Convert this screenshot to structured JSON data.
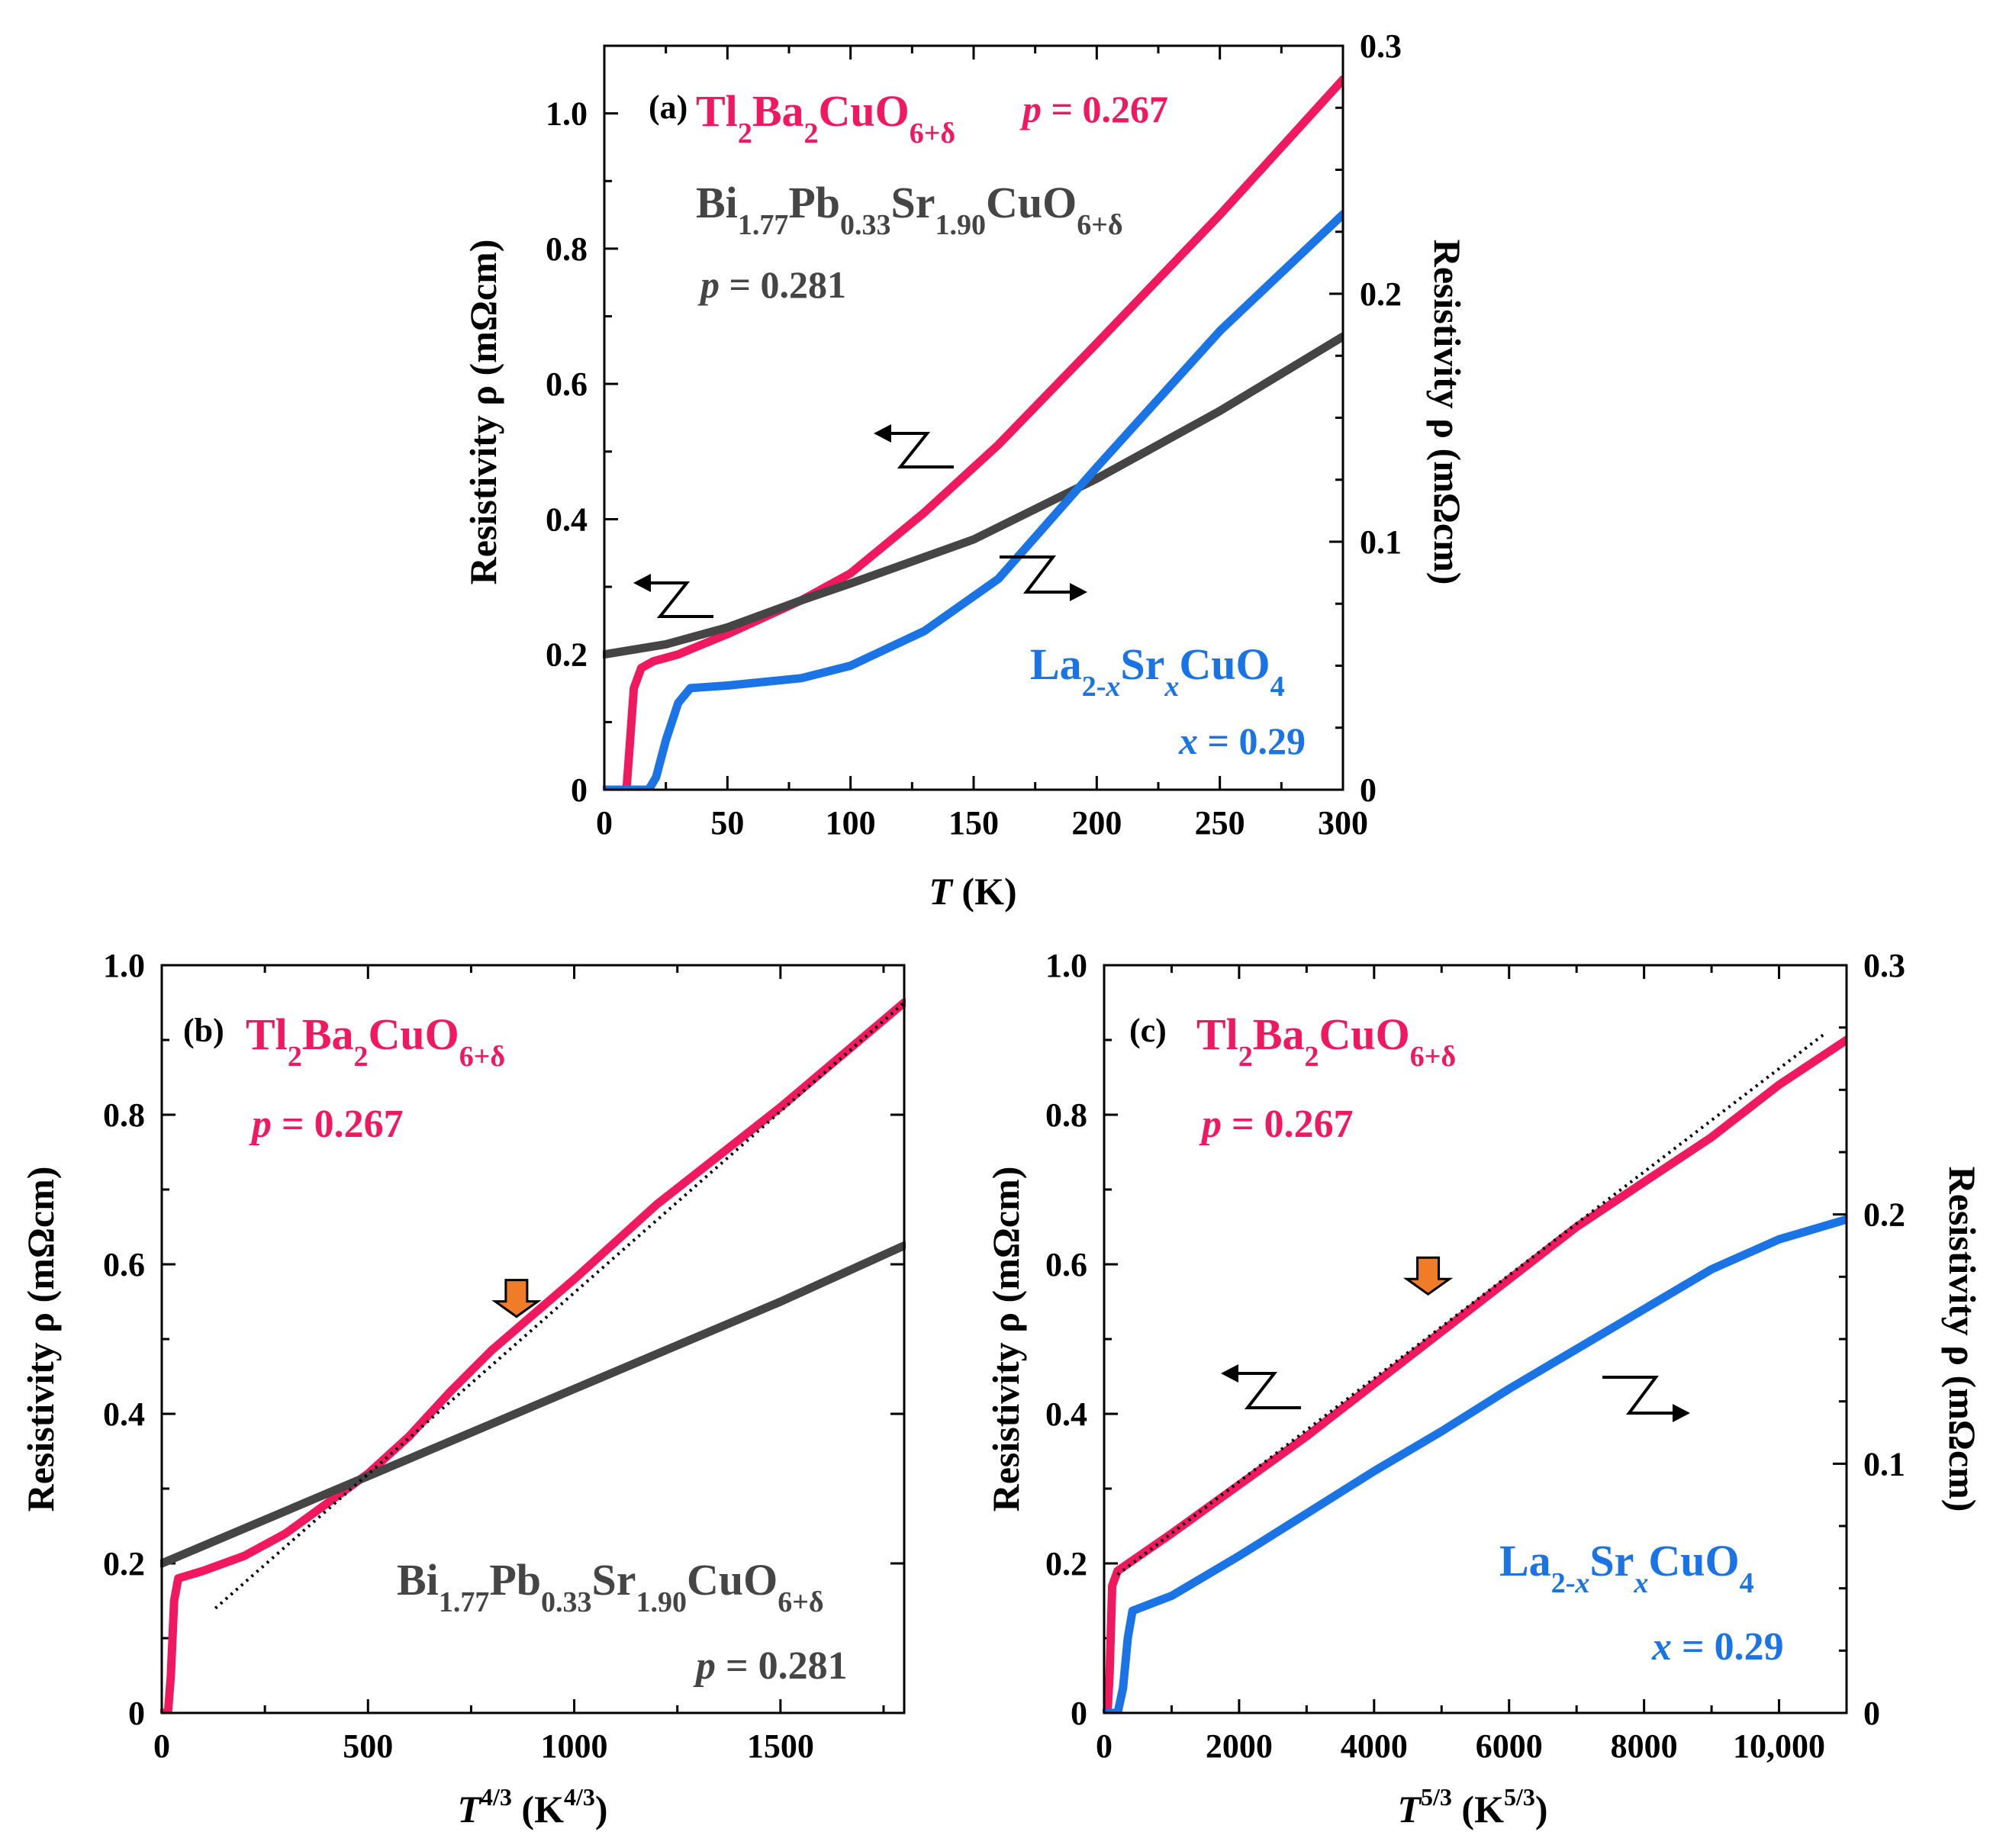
{
  "colors": {
    "tl": "#f0195f",
    "bi": "#454545",
    "la": "#1a74e6",
    "arrow": "#f07c28",
    "axis": "#000000"
  },
  "chart_data": [
    {
      "type": "line",
      "panel": "(a)",
      "xlabel_italic": "T",
      "xlabel_rest": " (K)",
      "ylabel": "Resistivity ρ (mΩcm)",
      "ylabel_right": "Resistivity ρ (mΩcm)",
      "xlim": [
        0,
        300
      ],
      "ylim": [
        0,
        1.1
      ],
      "ylim_right": [
        0,
        0.3
      ],
      "xticks": [
        "0",
        "50",
        "100",
        "150",
        "200",
        "250",
        "300"
      ],
      "yticks": [
        "0",
        "0.2",
        "0.4",
        "0.6",
        "0.8",
        "1.0"
      ],
      "yticks_right": [
        "0",
        "0.1",
        "0.2",
        "0.3"
      ],
      "annotations": {
        "tl_formula": "Tl2Ba2CuO6+δ",
        "tl_p": "p = 0.267",
        "bi_formula": "Bi1.77Pb0.33Sr1.90CuO6+δ",
        "bi_p": "p = 0.281",
        "la_formula": "La2-xSrxCuO4",
        "la_x": "x = 0.29"
      },
      "series": [
        {
          "name": "Tl2Ba2CuO6+δ",
          "axis": "left",
          "x": [
            0,
            9,
            10,
            12,
            15,
            20,
            30,
            50,
            80,
            100,
            130,
            160,
            200,
            250,
            300
          ],
          "y": [
            0,
            0,
            0.05,
            0.15,
            0.18,
            0.19,
            0.2,
            0.23,
            0.28,
            0.32,
            0.41,
            0.51,
            0.66,
            0.85,
            1.05
          ]
        },
        {
          "name": "Bi1.77Pb0.33Sr1.90CuO6+δ",
          "axis": "left",
          "x": [
            0,
            25,
            50,
            80,
            100,
            150,
            200,
            250,
            300
          ],
          "y": [
            0.2,
            0.215,
            0.24,
            0.28,
            0.305,
            0.37,
            0.46,
            0.56,
            0.67
          ]
        },
        {
          "name": "La2-xSrxCuO4",
          "axis": "right",
          "x": [
            0,
            18,
            21,
            25,
            30,
            35,
            50,
            80,
            100,
            130,
            160,
            200,
            250,
            300
          ],
          "y": [
            0,
            0,
            0.005,
            0.02,
            0.035,
            0.041,
            0.042,
            0.045,
            0.05,
            0.064,
            0.085,
            0.13,
            0.185,
            0.232
          ]
        }
      ]
    },
    {
      "type": "line",
      "panel": "(b)",
      "xlabel_italic": "T",
      "xlabel_sup": "4/3",
      "xlabel_rest": " (K",
      "xlabel_rest_sup": "4/3",
      "xlabel_close": ")",
      "ylabel": "Resistivity ρ (mΩcm)",
      "xlim": [
        0,
        1800
      ],
      "ylim": [
        0,
        1.0
      ],
      "xticks": [
        "0",
        "500",
        "1000",
        "1500"
      ],
      "yticks": [
        "0",
        "0.2",
        "0.4",
        "0.6",
        "0.8",
        "1.0"
      ],
      "annotations": {
        "tl_formula": "Tl2Ba2CuO6+δ",
        "tl_p": "p = 0.267",
        "bi_formula": "Bi1.77Pb0.33Sr1.90CuO6+δ",
        "bi_p": "p = 0.281"
      },
      "fit_line": {
        "x": [
          130,
          1800
        ],
        "y": [
          0.14,
          0.95
        ]
      },
      "arrow_marker": {
        "x": 860,
        "y": 0.53
      },
      "series": [
        {
          "name": "Tl2Ba2CuO6+δ",
          "x": [
            0,
            15,
            22,
            30,
            40,
            100,
            200,
            300,
            400,
            500,
            600,
            700,
            800,
            1000,
            1200,
            1500,
            1800
          ],
          "y": [
            0,
            0,
            0.05,
            0.15,
            0.18,
            0.19,
            0.21,
            0.24,
            0.28,
            0.32,
            0.37,
            0.43,
            0.485,
            0.58,
            0.68,
            0.81,
            0.95
          ]
        },
        {
          "name": "Bi1.77Pb0.33Sr1.90CuO6+δ",
          "x": [
            0,
            300,
            600,
            900,
            1200,
            1500,
            1800
          ],
          "y": [
            0.2,
            0.27,
            0.34,
            0.41,
            0.48,
            0.55,
            0.625
          ]
        }
      ]
    },
    {
      "type": "line",
      "panel": "(c)",
      "xlabel_italic": "T",
      "xlabel_sup": "5/3",
      "xlabel_rest": " (K",
      "xlabel_rest_sup": "5/3",
      "xlabel_close": ")",
      "ylabel": "Resistivity ρ (mΩcm)",
      "ylabel_right": "Resistivity ρ (mΩcm)",
      "xlim": [
        0,
        11000
      ],
      "ylim": [
        0,
        1.0
      ],
      "ylim_right": [
        0,
        0.3
      ],
      "xticks": [
        "0",
        "2000",
        "4000",
        "6000",
        "8000",
        "10,000"
      ],
      "yticks": [
        "0",
        "0.2",
        "0.4",
        "0.6",
        "0.8",
        "1.0"
      ],
      "yticks_right": [
        "0",
        "0.1",
        "0.2",
        "0.3"
      ],
      "annotations": {
        "tl_formula": "Tl2Ba2CuO6+δ",
        "tl_p": "p = 0.267",
        "la_formula": "La2-xSrxCuO4",
        "la_x": "x = 0.29"
      },
      "fit_line": {
        "x": [
          200,
          10700
        ],
        "y": [
          0.185,
          0.91
        ]
      },
      "arrow_marker": {
        "x": 4800,
        "y": 0.56
      },
      "series": [
        {
          "name": "Tl2Ba2CuO6+δ",
          "axis": "left",
          "x": [
            0,
            50,
            80,
            120,
            200,
            1000,
            2000,
            3000,
            4000,
            5000,
            6000,
            7000,
            8000,
            9000,
            10000,
            11000
          ],
          "y": [
            0,
            0,
            0.05,
            0.17,
            0.19,
            0.24,
            0.305,
            0.37,
            0.44,
            0.51,
            0.58,
            0.65,
            0.71,
            0.77,
            0.84,
            0.9
          ]
        },
        {
          "name": "La2-xSrxCuO4",
          "axis": "right",
          "x": [
            0,
            200,
            280,
            350,
            420,
            1000,
            2000,
            3000,
            4000,
            5000,
            6000,
            7000,
            8000,
            9000,
            10000,
            11000
          ],
          "y": [
            0,
            0,
            0.01,
            0.03,
            0.041,
            0.047,
            0.063,
            0.08,
            0.097,
            0.113,
            0.13,
            0.146,
            0.162,
            0.178,
            0.19,
            0.198
          ]
        }
      ]
    }
  ]
}
